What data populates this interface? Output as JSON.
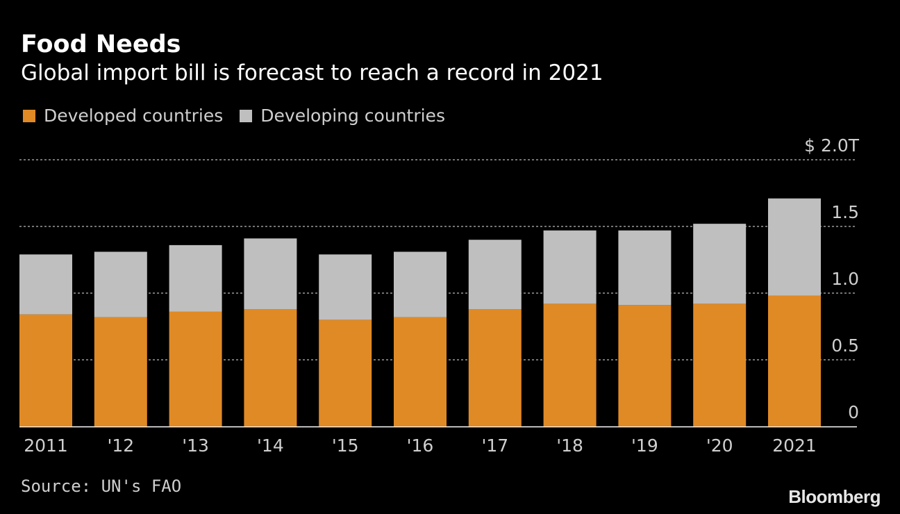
{
  "chart_data": {
    "type": "bar",
    "stacked": true,
    "title": "Food Needs",
    "subtitle": "Global import bill is forecast to reach a record in 2021",
    "categories": [
      "2011",
      "'12",
      "'13",
      "'14",
      "'15",
      "'16",
      "'17",
      "'18",
      "'19",
      "'20",
      "2021"
    ],
    "series": [
      {
        "name": "Developed countries",
        "color": "#e08a26",
        "values": [
          0.84,
          0.82,
          0.86,
          0.88,
          0.8,
          0.82,
          0.88,
          0.92,
          0.91,
          0.92,
          0.98
        ]
      },
      {
        "name": "Developing countries",
        "color": "#bfbfbf",
        "values": [
          0.45,
          0.49,
          0.5,
          0.53,
          0.49,
          0.49,
          0.52,
          0.55,
          0.56,
          0.6,
          0.73
        ]
      }
    ],
    "y_ticks": [
      {
        "value": 2.0,
        "label": "$ 2.0T"
      },
      {
        "value": 1.5,
        "label": "1.5"
      },
      {
        "value": 1.0,
        "label": "1.0"
      },
      {
        "value": 0.5,
        "label": "0.5"
      },
      {
        "value": 0,
        "label": "0"
      }
    ],
    "ylim": [
      0,
      2.0
    ],
    "grid": true,
    "y_axis_position": "right",
    "legend_position": "top-left",
    "background": "#000000"
  },
  "footer": {
    "source": "Source: UN's FAO",
    "brand": "Bloomberg"
  }
}
